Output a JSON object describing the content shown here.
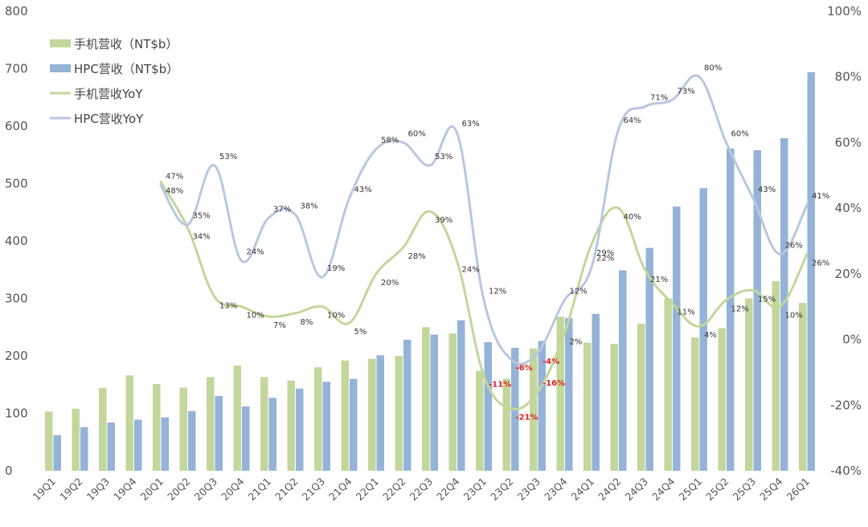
{
  "chart_data": {
    "type": "bar+line",
    "categories": [
      "19Q1",
      "19Q2",
      "19Q3",
      "19Q4",
      "20Q1",
      "20Q2",
      "20Q3",
      "20Q4",
      "21Q1",
      "21Q2",
      "21Q3",
      "21Q4",
      "22Q1",
      "22Q2",
      "22Q3",
      "22Q4",
      "23Q1",
      "23Q2",
      "23Q3",
      "23Q4",
      "24Q1",
      "24Q2",
      "24Q3",
      "24Q4",
      "25Q1",
      "25Q2",
      "25Q3",
      "25Q4",
      "26Q1"
    ],
    "left_axis": {
      "min": 0,
      "max": 800,
      "ticks": [
        "0",
        "100",
        "200",
        "300",
        "400",
        "500",
        "600",
        "700",
        "800"
      ]
    },
    "right_axis": {
      "min": -40,
      "max": 100,
      "ticks": [
        "-40%",
        "-20%",
        "0%",
        "20%",
        "40%",
        "60%",
        "80%",
        "100%"
      ]
    },
    "series": [
      {
        "name": "手机营收（NT$b）",
        "kind": "bar",
        "axis": "left",
        "color": "#c3d69b",
        "values": [
          103,
          108,
          144,
          166,
          151,
          145,
          163,
          183,
          163,
          157,
          180,
          192,
          195,
          200,
          250,
          239,
          174,
          160,
          213,
          268,
          223,
          221,
          256,
          300,
          232,
          248,
          300,
          330,
          292
        ]
      },
      {
        "name": "HPC营收（NT$b）",
        "kind": "bar",
        "axis": "left",
        "color": "#95b3d7",
        "values": [
          62,
          76,
          84,
          89,
          93,
          104,
          130,
          112,
          127,
          143,
          155,
          160,
          201,
          228,
          237,
          262,
          224,
          214,
          226,
          266,
          273,
          349,
          388,
          460,
          492,
          561,
          558,
          579,
          694
        ]
      },
      {
        "name": "手机营收YoY",
        "kind": "line",
        "axis": "right",
        "color": "#c3d69b",
        "values": [
          null,
          null,
          null,
          null,
          48,
          34,
          13,
          10,
          7,
          8,
          10,
          5,
          20,
          28,
          39,
          24,
          -11,
          -21,
          -16,
          2,
          29,
          40,
          21,
          11,
          4,
          12,
          15,
          10,
          26
        ],
        "labels": [
          null,
          null,
          null,
          null,
          "48%",
          "34%",
          "13%",
          "10%",
          "7%",
          "8%",
          "10%",
          "5%",
          "20%",
          "28%",
          "39%",
          "24%",
          "-11%",
          "-21%",
          "-16%",
          "2%",
          "29%",
          "40%",
          "21%",
          "11%",
          "4%",
          "12%",
          "15%",
          "10%",
          "26%"
        ]
      },
      {
        "name": "HPC营收YoY",
        "kind": "line",
        "axis": "right",
        "color": "#b8c7e0",
        "values": [
          null,
          null,
          null,
          null,
          47,
          35,
          53,
          24,
          37,
          38,
          19,
          43,
          58,
          60,
          53,
          63,
          12,
          -6,
          -4,
          12,
          22,
          64,
          71,
          73,
          80,
          60,
          43,
          26,
          41
        ],
        "labels": [
          null,
          null,
          null,
          null,
          "47%",
          "35%",
          "53%",
          "24%",
          "37%",
          "38%",
          "19%",
          "43%",
          "58%",
          "60%",
          "53%",
          "63%",
          "12%",
          "-6%",
          "-4%",
          "12%",
          "22%",
          "64%",
          "71%",
          "73%",
          "80%",
          "60%",
          "43%",
          "26%",
          "41%"
        ]
      }
    ]
  }
}
